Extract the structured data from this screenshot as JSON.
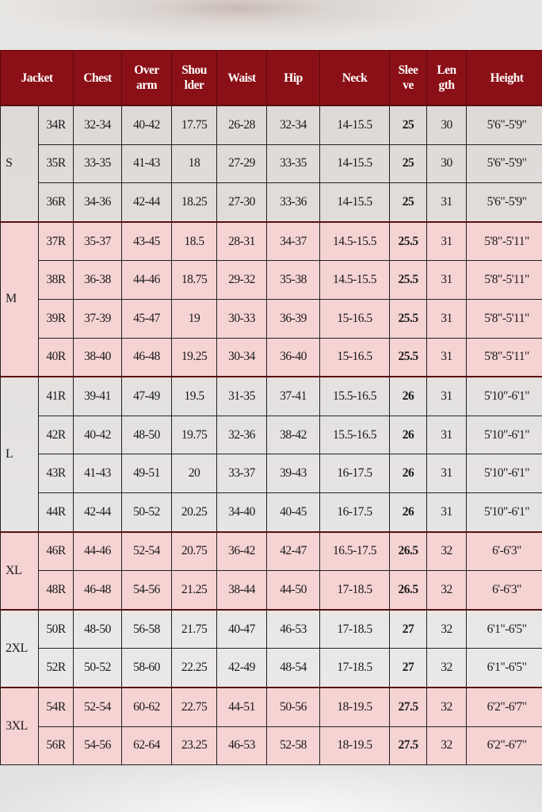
{
  "colors": {
    "header": "#8b0f16",
    "shade": "#f6d3d3",
    "plain": "#ffffff"
  },
  "header": [
    "Jacket",
    "Chest",
    "Over arm",
    "Shou lder",
    "Waist",
    "Hip",
    "Neck",
    "Slee ve",
    "Len gth",
    "Height"
  ],
  "groups": [
    {
      "size": "S",
      "shaded": false,
      "rows": [
        [
          "34R",
          "32-34",
          "40-42",
          "17.75",
          "26-28",
          "32-34",
          "14-15.5",
          "25",
          "30",
          "5'6\"-5'9\""
        ],
        [
          "35R",
          "33-35",
          "41-43",
          "18",
          "27-29",
          "33-35",
          "14-15.5",
          "25",
          "30",
          "5'6\"-5'9\""
        ],
        [
          "36R",
          "34-36",
          "42-44",
          "18.25",
          "27-30",
          "33-36",
          "14-15.5",
          "25",
          "31",
          "5'6\"-5'9\""
        ]
      ]
    },
    {
      "size": "M",
      "shaded": true,
      "rows": [
        [
          "37R",
          "35-37",
          "43-45",
          "18.5",
          "28-31",
          "34-37",
          "14.5-15.5",
          "25.5",
          "31",
          "5'8\"-5'11\""
        ],
        [
          "38R",
          "36-38",
          "44-46",
          "18.75",
          "29-32",
          "35-38",
          "14.5-15.5",
          "25.5",
          "31",
          "5'8\"-5'11\""
        ],
        [
          "39R",
          "37-39",
          "45-47",
          "19",
          "30-33",
          "36-39",
          "15-16.5",
          "25.5",
          "31",
          "5'8\"-5'11\""
        ],
        [
          "40R",
          "38-40",
          "46-48",
          "19.25",
          "30-34",
          "36-40",
          "15-16.5",
          "25.5",
          "31",
          "5'8\"-5'11\""
        ]
      ]
    },
    {
      "size": "L",
      "shaded": false,
      "rows": [
        [
          "41R",
          "39-41",
          "47-49",
          "19.5",
          "31-35",
          "37-41",
          "15.5-16.5",
          "26",
          "31",
          "5'10\"-6'1\""
        ],
        [
          "42R",
          "40-42",
          "48-50",
          "19.75",
          "32-36",
          "38-42",
          "15.5-16.5",
          "26",
          "31",
          "5'10\"-6'1\""
        ],
        [
          "43R",
          "41-43",
          "49-51",
          "20",
          "33-37",
          "39-43",
          "16-17.5",
          "26",
          "31",
          "5'10\"-6'1\""
        ],
        [
          "44R",
          "42-44",
          "50-52",
          "20.25",
          "34-40",
          "40-45",
          "16-17.5",
          "26",
          "31",
          "5'10\"-6'1\""
        ]
      ]
    },
    {
      "size": "XL",
      "shaded": true,
      "rows": [
        [
          "46R",
          "44-46",
          "52-54",
          "20.75",
          "36-42",
          "42-47",
          "16.5-17.5",
          "26.5",
          "32",
          "6'-6'3\""
        ],
        [
          "48R",
          "46-48",
          "54-56",
          "21.25",
          "38-44",
          "44-50",
          "17-18.5",
          "26.5",
          "32",
          "6'-6'3\""
        ]
      ]
    },
    {
      "size": "2XL",
      "shaded": false,
      "rows": [
        [
          "50R",
          "48-50",
          "56-58",
          "21.75",
          "40-47",
          "46-53",
          "17-18.5",
          "27",
          "32",
          "6'1\"-6'5\""
        ],
        [
          "52R",
          "50-52",
          "58-60",
          "22.25",
          "42-49",
          "48-54",
          "17-18.5",
          "27",
          "32",
          "6'1\"-6'5\""
        ]
      ]
    },
    {
      "size": "3XL",
      "shaded": true,
      "rows": [
        [
          "54R",
          "52-54",
          "60-62",
          "22.75",
          "44-51",
          "50-56",
          "18-19.5",
          "27.5",
          "32",
          "6'2\"-6'7\""
        ],
        [
          "56R",
          "54-56",
          "62-64",
          "23.25",
          "46-53",
          "52-58",
          "18-19.5",
          "27.5",
          "32",
          "6'2\"-6'7\""
        ]
      ]
    }
  ]
}
